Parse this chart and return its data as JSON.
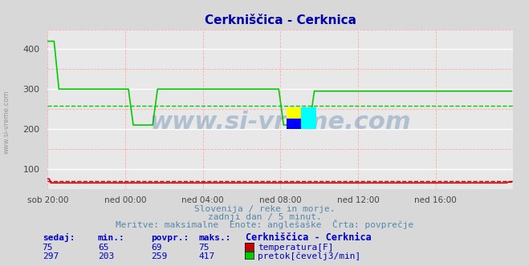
{
  "title": "Cerkniščica - Cerknica",
  "title_color": "#0000aa",
  "bg_color": "#d8d8d8",
  "plot_bg_color": "#e8e8e8",
  "grid_color_major": "#ffffff",
  "grid_color_minor": "#ffaaaa",
  "xlabel_ticks": [
    "sob 20:00",
    "ned 00:00",
    "ned 04:00",
    "ned 08:00",
    "ned 12:00",
    "ned 16:00"
  ],
  "xlim": [
    0,
    288
  ],
  "ylim": [
    50,
    450
  ],
  "yticks": [
    100,
    200,
    300,
    400
  ],
  "temp_color": "#cc0000",
  "flow_color": "#00cc00",
  "avg_temp": 69,
  "avg_flow": 259,
  "watermark": "www.si-vreme.com",
  "watermark_color": "#336699",
  "watermark_alpha": 0.3,
  "subtitle1": "Slovenija / reke in morje.",
  "subtitle2": "zadnji dan / 5 minut.",
  "subtitle3": "Meritve: maksimalne  Enote: anglešaške  Črta: povprečje",
  "subtitle_color": "#5588aa",
  "table_header": [
    "sedaj:",
    "min.:",
    "povpr.:",
    "maks.:",
    "Cerkniščica - Cerknica"
  ],
  "row1": [
    "75",
    "65",
    "69",
    "75",
    "temperatura[F]"
  ],
  "row2": [
    "297",
    "203",
    "259",
    "417",
    "pretok[čevelj3/min]"
  ],
  "table_color": "#0000cc",
  "side_label": "www.si-vreme.com",
  "side_label_color": "#888888"
}
